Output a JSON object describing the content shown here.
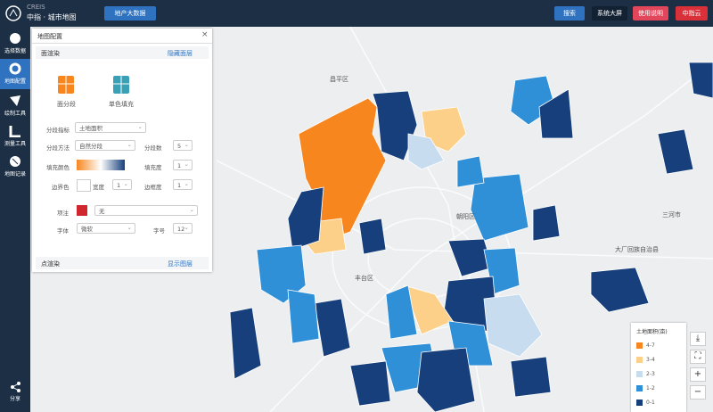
{
  "header": {
    "logo_brand": "CREIS",
    "logo_title": "中指 · 城市地图",
    "big_data_button": "地产大数据",
    "search_button": "搜索",
    "screen_button": "系统大屏",
    "help_button": "使用说明",
    "cloud_button": "中指云"
  },
  "sidebar": {
    "items": [
      "选择数据",
      "地图配置",
      "绘制工具",
      "测量工具",
      "地图记录"
    ],
    "share": "分享"
  },
  "panel": {
    "title": "地图配置",
    "surface_section": "面渲染",
    "hide_layer": "隐藏面层",
    "fill_modes": [
      "面分段",
      "单色填充"
    ],
    "fields": {
      "index_label": "分段指标",
      "index_value": "土地面积",
      "method_label": "分段方法",
      "method_value": "自然分段",
      "count_label": "分段数",
      "count_value": "5",
      "fill_label": "填充颜色",
      "fill_opacity_label": "填充度",
      "fill_opacity_value": "1",
      "border_label": "边界色",
      "width_label": "宽度",
      "width_value": "1",
      "border_opacity_label": "边框度",
      "border_opacity_value": "1",
      "note_label": "项注",
      "note_value": "无",
      "font_label": "字体",
      "font_value": "微软",
      "size_label": "字号",
      "size_value": "12"
    },
    "point_section": "点渲染",
    "show_layer": "显示图层"
  },
  "map": {
    "labels": [
      "昌平区",
      "朝阳区",
      "丰台区",
      "大厂回族自治县",
      "三河市"
    ]
  },
  "legend": {
    "title": "土地面积(亩)",
    "items": [
      "4-7",
      "3-4",
      "2-3",
      "1-2",
      "0-1"
    ]
  }
}
